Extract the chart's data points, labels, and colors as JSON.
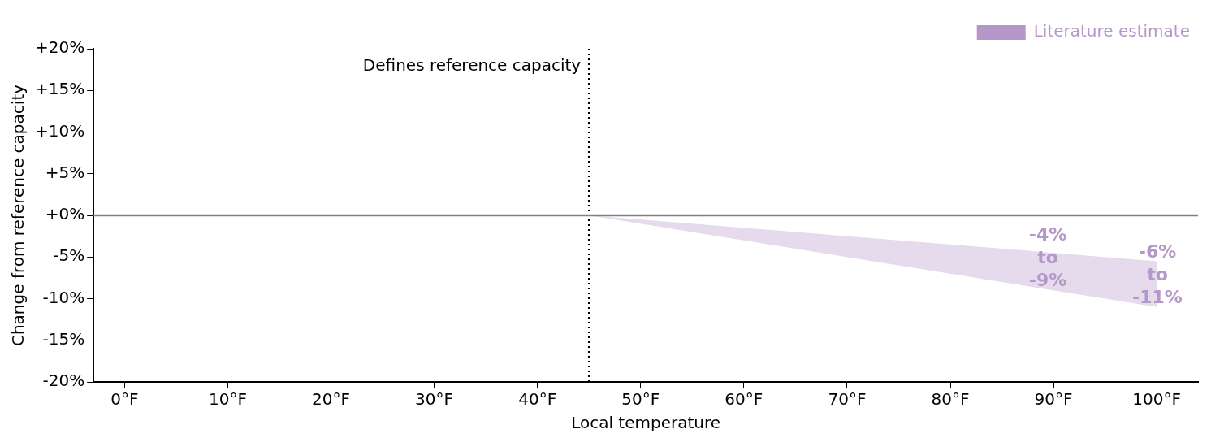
{
  "chart_data": {
    "type": "area",
    "xlabel": "Local temperature",
    "ylabel": "Change from reference capacity",
    "xlim": [
      -3,
      104
    ],
    "ylim": [
      -20,
      20
    ],
    "xticks": [
      {
        "value": 0,
        "label": "0°F"
      },
      {
        "value": 10,
        "label": "10°F"
      },
      {
        "value": 20,
        "label": "20°F"
      },
      {
        "value": 30,
        "label": "30°F"
      },
      {
        "value": 40,
        "label": "40°F"
      },
      {
        "value": 50,
        "label": "50°F"
      },
      {
        "value": 60,
        "label": "60°F"
      },
      {
        "value": 70,
        "label": "70°F"
      },
      {
        "value": 80,
        "label": "80°F"
      },
      {
        "value": 90,
        "label": "90°F"
      },
      {
        "value": 100,
        "label": "100°F"
      }
    ],
    "yticks": [
      {
        "value": -20,
        "label": "-20%"
      },
      {
        "value": -15,
        "label": "-15%"
      },
      {
        "value": -10,
        "label": "-10%"
      },
      {
        "value": -5,
        "label": "-5%"
      },
      {
        "value": 0,
        "label": "+0%"
      },
      {
        "value": 5,
        "label": "+5%"
      },
      {
        "value": 10,
        "label": "+10%"
      },
      {
        "value": 15,
        "label": "+15%"
      },
      {
        "value": 20,
        "label": "+20%"
      }
    ],
    "series": [
      {
        "name": "Literature estimate",
        "color": "#b597c9",
        "x": [
          45,
          100
        ],
        "values": [
          null,
          null
        ],
        "lower": [
          0,
          -11
        ],
        "upper": [
          0,
          -5.5
        ]
      }
    ],
    "ref_lines": [
      {
        "axis": "x",
        "value": 45,
        "label": "Defines reference capacity",
        "color": "#000000",
        "line_style": "dotted"
      },
      {
        "axis": "y",
        "value": 0,
        "label": null,
        "color": "#808080",
        "line_style": "solid"
      }
    ],
    "annotations": [
      "-4%\nto\n-9%",
      "-6%\nto\n-11%"
    ],
    "legend": "top right"
  }
}
